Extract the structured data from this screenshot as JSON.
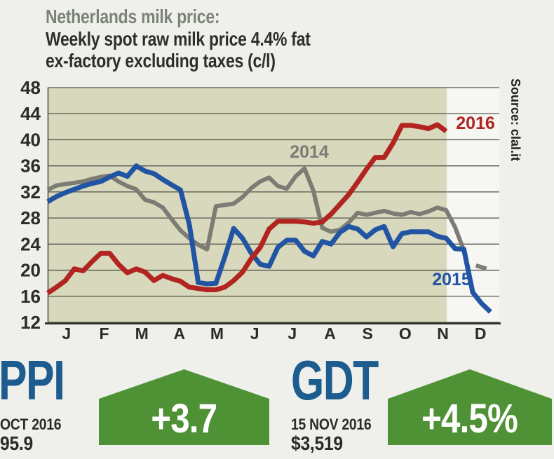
{
  "title": {
    "heading": "Netherlands milk price:",
    "sub1": "Weekly spot raw milk price 4.4% fat",
    "sub2": "ex-factory excluding taxes (c/l)"
  },
  "source": "Source: clal.it",
  "chart_data": {
    "type": "line",
    "title": "Netherlands milk price: weekly spot raw milk price 4.4% fat ex-factory excluding taxes (c/l)",
    "xlabel": "week of year (Jan–Dec, weekly data)",
    "ylabel": "c/l",
    "ylim": [
      12,
      48
    ],
    "y_ticks": [
      48,
      44,
      40,
      36,
      32,
      28,
      24,
      20,
      16,
      12
    ],
    "x_tick_labels": [
      "J",
      "F",
      "M",
      "A",
      "M",
      "J",
      "J",
      "A",
      "S",
      "O",
      "N",
      "D"
    ],
    "grid": true,
    "legend_position": "inline line labels",
    "highlight_band": "January through mid-November shaded khaki (period with 2016 data)",
    "band_color": "#d8d8bc",
    "plot_bg_after_band": "#f6f6f3",
    "gridline_color": "#54544d",
    "series": [
      {
        "name": "2014",
        "color": "#7c7c75",
        "stroke_width": 6,
        "values": [
          32.3,
          33.0,
          33.2,
          33.4,
          33.6,
          34.0,
          34.3,
          34.5,
          33.6,
          32.9,
          32.4,
          30.8,
          30.4,
          29.6,
          27.8,
          26.1,
          24.9,
          23.9,
          23.2,
          29.8,
          30.0,
          30.2,
          31.2,
          32.6,
          33.6,
          34.2,
          32.9,
          32.5,
          34.4,
          35.6,
          32.2,
          26.5,
          25.9,
          26.2,
          27.3,
          28.8,
          28.5,
          28.8,
          29.1,
          28.7,
          28.5,
          28.9,
          28.6,
          29.0,
          29.6,
          29.2,
          26.6,
          23.0,
          null,
          20.5
        ]
      },
      {
        "name": "2015",
        "color": "#2254a4",
        "stroke_width": 7,
        "values": [
          30.5,
          31.3,
          31.9,
          32.4,
          32.9,
          33.3,
          33.6,
          34.3,
          34.9,
          34.4,
          36.0,
          35.2,
          34.8,
          33.9,
          33.1,
          32.3,
          27.0,
          18.1,
          17.9,
          18.0,
          22.0,
          26.4,
          24.9,
          22.6,
          20.9,
          20.6,
          23.5,
          24.6,
          24.6,
          22.9,
          22.2,
          24.4,
          24.0,
          25.8,
          26.7,
          26.3,
          25.1,
          26.2,
          26.7,
          23.6,
          25.6,
          25.9,
          25.9,
          25.9,
          25.2,
          24.9,
          23.3,
          23.2,
          16.6,
          14.9,
          13.6
        ]
      },
      {
        "name": "2016",
        "color": "#b12420",
        "stroke_width": 7,
        "values": [
          16.5,
          17.4,
          18.4,
          20.2,
          19.9,
          21.3,
          22.6,
          22.6,
          20.9,
          19.6,
          20.2,
          19.7,
          18.4,
          19.2,
          18.7,
          18.3,
          17.4,
          17.2,
          17.0,
          17.0,
          17.4,
          18.4,
          19.7,
          21.8,
          23.5,
          26.3,
          27.5,
          27.5,
          27.5,
          27.4,
          27.2,
          27.4,
          28.6,
          30.1,
          31.6,
          33.5,
          35.5,
          37.3,
          37.3,
          39.5,
          42.2,
          42.2,
          42.0,
          41.7,
          42.3,
          41.3
        ]
      }
    ]
  },
  "stats": [
    {
      "label": "PPI",
      "date": "OCT 2016",
      "value": "95.9",
      "change": "+3.7",
      "direction": "up",
      "accent": "#1d5c8e",
      "arrow_color": "#4f9135"
    },
    {
      "label": "GDT",
      "date": "15 NOV 2016",
      "value": "$3,519",
      "change": "+4.5%",
      "direction": "up",
      "accent": "#1d5c8e",
      "arrow_color": "#4f9135"
    }
  ]
}
